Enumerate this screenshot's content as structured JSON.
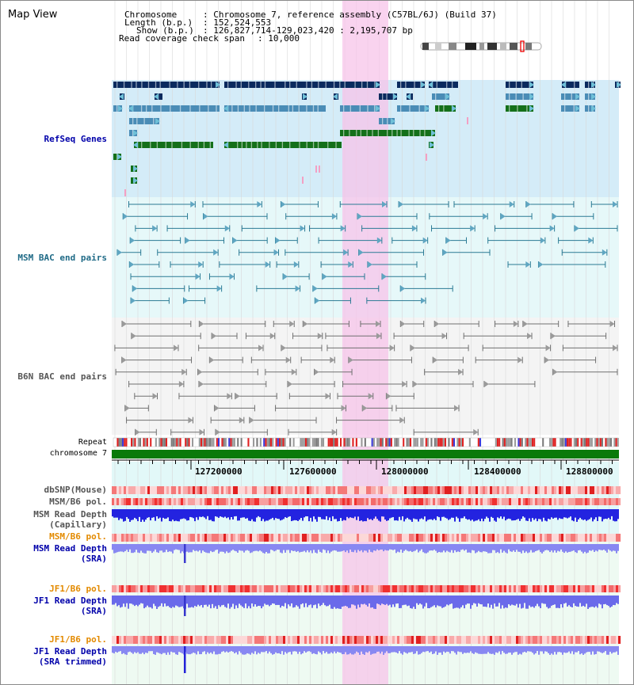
{
  "title": "Map View",
  "info": {
    "chromosome_label": "Chromosome",
    "chromosome_value": "Chromosome 7, reference assembly (C57BL/6J) (Build 37)",
    "length_label": "Length (b.p.)",
    "length_value": "152,524,553",
    "show_label": "Show (b.p.)",
    "show_value": "126,827,714-129,023,420 : 2,195,707 bp",
    "coverage_label": "Read coverage check span",
    "coverage_value": "10,000"
  },
  "tracks": {
    "refseq": "RefSeq Genes",
    "msm_bac": "MSM BAC end pairs",
    "b6n_bac": "B6N BAC end pairs",
    "repeat": "Repeat",
    "chromosome": "chromosome 7",
    "dbsnp": "dbSNP(Mouse)",
    "msm_b6_pol": "MSM/B6 pol.",
    "msm_depth_cap_1": "MSM Read Depth",
    "msm_depth_cap_2": "(Capillary)",
    "msm_b6_pol2": "MSM/B6 pol.",
    "msm_depth_sra_1": "MSM Read Depth",
    "msm_depth_sra_2": "(SRA)",
    "jf1_b6_pol": "JF1/B6 pol.",
    "jf1_depth_sra_1": "JF1 Read Depth",
    "jf1_depth_sra_2": "(SRA)",
    "jf1_b6_pol2": "JF1/B6 pol.",
    "jf1_depth_trim_1": "JF1 Read Depth",
    "jf1_depth_trim_2": "(SRA trimmed)"
  },
  "axis": {
    "ticks": [
      "127200000",
      "127600000",
      "128000000",
      "128400000",
      "128800000"
    ]
  },
  "colors": {
    "refseq_label": "#0000aa",
    "msm_label": "#1f6a86",
    "b6n_label": "#555555",
    "orange": "#e38a00",
    "blue": "#0000aa",
    "highlight": "#f7c4ea"
  }
}
